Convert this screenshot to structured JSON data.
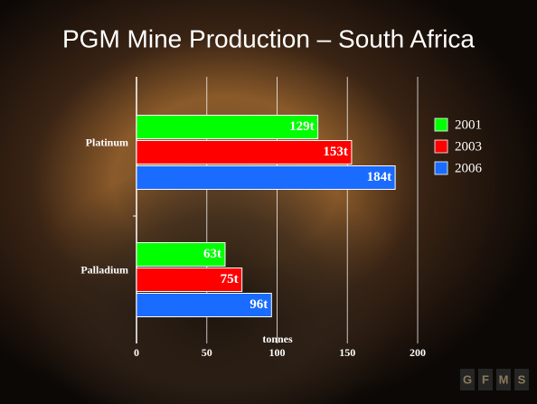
{
  "chart_data": {
    "type": "hbar",
    "title": "PGM Mine Production – South Africa",
    "categories": [
      "Platinum",
      "Palladium"
    ],
    "series": [
      {
        "name": "2001",
        "color": "#00ff00",
        "values": [
          129,
          63
        ],
        "value_labels": [
          "129t",
          "63t"
        ]
      },
      {
        "name": "2003",
        "color": "#ff0000",
        "values": [
          153,
          75
        ],
        "value_labels": [
          "153t",
          "75t"
        ]
      },
      {
        "name": "2006",
        "color": "#1a6bff",
        "values": [
          184,
          96
        ],
        "value_labels": [
          "184t",
          "96t"
        ]
      }
    ],
    "xlabel": "tonnes",
    "xlim": [
      0,
      200
    ],
    "xticks": [
      0,
      50,
      100,
      150,
      200
    ],
    "grid": true,
    "legend": "right"
  },
  "logo": [
    "G",
    "F",
    "M",
    "S"
  ]
}
